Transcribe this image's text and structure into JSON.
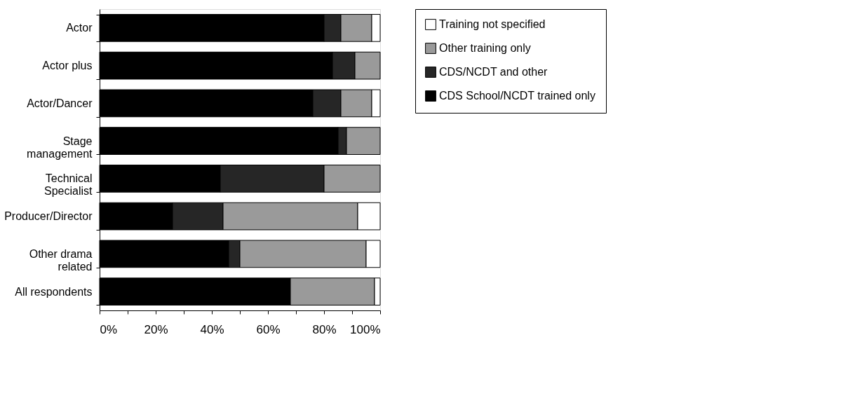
{
  "chart_data": {
    "type": "bar",
    "orientation": "horizontal",
    "stacked": true,
    "categories": [
      "Actor",
      "Actor plus",
      "Actor/Dancer",
      "Stage\nmanagement",
      "Technical\nSpecialist",
      "Producer/Director",
      "Other drama\nrelated",
      "All respondents"
    ],
    "series": [
      {
        "name": "CDS School/NCDT trained only",
        "color": "#000000",
        "values": [
          80,
          83,
          76,
          85,
          43,
          26,
          46,
          68
        ]
      },
      {
        "name": "CDS/NCDT and other",
        "color": "#262626",
        "values": [
          6,
          8,
          10,
          3,
          37,
          18,
          4,
          0
        ]
      },
      {
        "name": "Other training only",
        "color": "#9a9a9a",
        "values": [
          11,
          9,
          11,
          12,
          20,
          48,
          45,
          30
        ]
      },
      {
        "name": "Training not specified",
        "color": "#ffffff",
        "values": [
          3,
          0,
          3,
          0,
          0,
          8,
          5,
          2
        ]
      }
    ],
    "xlim": [
      0,
      100
    ],
    "xticks": [
      {
        "value": 0,
        "label": "0%"
      },
      {
        "value": 10,
        "label": null
      },
      {
        "value": 20,
        "label": "20%"
      },
      {
        "value": 30,
        "label": null
      },
      {
        "value": 40,
        "label": "40%"
      },
      {
        "value": 50,
        "label": null
      },
      {
        "value": 60,
        "label": "60%"
      },
      {
        "value": 70,
        "label": null
      },
      {
        "value": 80,
        "label": "80%"
      },
      {
        "value": 90,
        "label": null
      },
      {
        "value": 100,
        "label": "100%"
      }
    ],
    "grid": false,
    "legend": "right"
  }
}
